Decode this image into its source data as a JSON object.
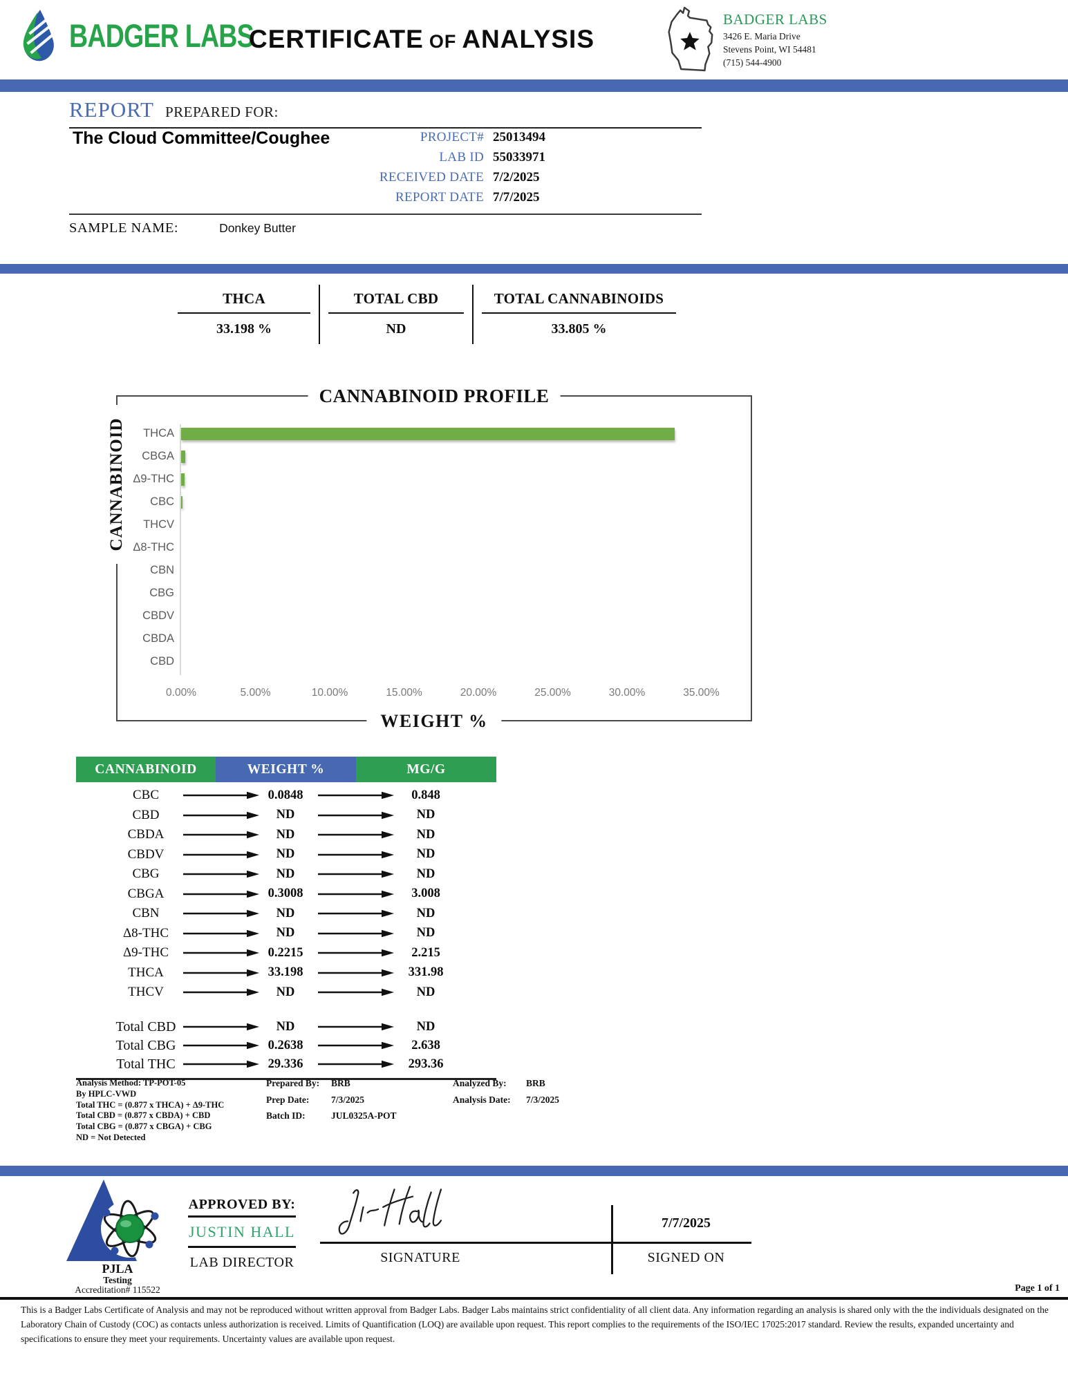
{
  "header": {
    "brand": "BADGER LABS",
    "title": {
      "word1": "CERTIFICATE",
      "word2": "OF",
      "word3": "ANALYSIS"
    },
    "lab": {
      "name": "BADGER LABS",
      "address1": "3426 E. Maria Drive",
      "address2": "Stevens Point, WI 54481",
      "phone": "(715) 544-4900"
    }
  },
  "report": {
    "title": "REPORT",
    "subtitle": "PREPARED FOR:",
    "client": "The Cloud Committee/Coughee",
    "fields": [
      {
        "label": "PROJECT#",
        "value": "25013494"
      },
      {
        "label": "LAB ID",
        "value": "55033971"
      },
      {
        "label": "RECEIVED DATE",
        "value": "7/2/2025"
      },
      {
        "label": "REPORT DATE",
        "value": "7/7/2025"
      }
    ],
    "sample_label": "SAMPLE NAME:",
    "sample_value": "Donkey Butter"
  },
  "summary": {
    "columns": [
      {
        "label": "THCA",
        "value": "33.198 %"
      },
      {
        "label": "TOTAL CBD",
        "value": "ND"
      },
      {
        "label": "TOTAL CANNABINOIDS",
        "value": "33.805 %"
      }
    ]
  },
  "chart_data": {
    "type": "bar",
    "orientation": "horizontal",
    "title": "CANNABINOID PROFILE",
    "xlabel": "WEIGHT %",
    "ylabel": "CANNABINOID",
    "categories": [
      "THCA",
      "CBGA",
      "Δ9-THC",
      "CBC",
      "THCV",
      "Δ8-THC",
      "CBN",
      "CBG",
      "CBDV",
      "CBDA",
      "CBD"
    ],
    "values": [
      33.198,
      0.3008,
      0.2215,
      0.0848,
      0,
      0,
      0,
      0,
      0,
      0,
      0
    ],
    "xlim": [
      0,
      35
    ],
    "x_ticks": [
      "0.00%",
      "5.00%",
      "10.00%",
      "15.00%",
      "20.00%",
      "25.00%",
      "30.00%",
      "35.00%"
    ],
    "bar_color": "#70ad47",
    "grid": false,
    "legend": "none"
  },
  "cannabinoid_table": {
    "headers": [
      "CANNABINOID",
      "WEIGHT %",
      "MG/G"
    ],
    "rows": [
      {
        "name": "CBC",
        "weight": "0.0848",
        "mgg": "0.848"
      },
      {
        "name": "CBD",
        "weight": "ND",
        "mgg": "ND"
      },
      {
        "name": "CBDA",
        "weight": "ND",
        "mgg": "ND"
      },
      {
        "name": "CBDV",
        "weight": "ND",
        "mgg": "ND"
      },
      {
        "name": "CBG",
        "weight": "ND",
        "mgg": "ND"
      },
      {
        "name": "CBGA",
        "weight": "0.3008",
        "mgg": "3.008"
      },
      {
        "name": "CBN",
        "weight": "ND",
        "mgg": "ND"
      },
      {
        "name": "Δ8-THC",
        "weight": "ND",
        "mgg": "ND"
      },
      {
        "name": "Δ9-THC",
        "weight": "0.2215",
        "mgg": "2.215"
      },
      {
        "name": "THCA",
        "weight": "33.198",
        "mgg": "331.98"
      },
      {
        "name": "THCV",
        "weight": "ND",
        "mgg": "ND"
      }
    ],
    "totals": [
      {
        "name": "Total CBD",
        "weight": "ND",
        "mgg": "ND"
      },
      {
        "name": "Total CBG",
        "weight": "0.2638",
        "mgg": "2.638"
      },
      {
        "name": "Total THC",
        "weight": "29.336",
        "mgg": "293.36"
      }
    ]
  },
  "method_notes": {
    "left": [
      "Analysis Method: TP-POT-05",
      "By HPLC-VWD",
      "Total THC = (0.877 x  THCA) + Δ9-THC",
      "Total CBD = (0.877 x  CBDA) + CBD",
      "Total CBG = (0.877 x  CBGA) + CBG",
      "ND = Not Detected"
    ],
    "middle": [
      {
        "label": "Prepared By:",
        "value": "BRB"
      },
      {
        "label": "Prep Date:",
        "value": "7/3/2025"
      },
      {
        "label": "Batch ID:",
        "value": "JUL0325A-POT"
      }
    ],
    "right": [
      {
        "label": "Analyzed By:",
        "value": "BRB"
      },
      {
        "label": "Analysis Date:",
        "value": "7/3/2025"
      }
    ]
  },
  "approval": {
    "accreditation_org": "PJLA",
    "accreditation_line2": "Testing",
    "accreditation_line3": "Accreditation# 115522",
    "approved_by_label": "APPROVED BY:",
    "approver": "JUSTIN HALL",
    "approver_title": "LAB DIRECTOR",
    "signature_label": "SIGNATURE",
    "signed_on_date": "7/7/2025",
    "signed_on_label": "SIGNED ON"
  },
  "footer": {
    "page": "Page 1 of 1",
    "disclaimer": "This is a Badger Labs Certificate of Analysis and may not be reproduced without written approval from Badger Labs. Badger Labs maintains strict confidentiality of all client data. Any information regarding an analysis is shared only with the the individuals designated on the Laboratory Chain of Custody (COC) as contacts unless authorization is received. Limits of Quantification (LOQ) are available upon request. This report complies to the requirements of the ISO/IEC 17025:2017 standard. Review the results, expanded uncertainty and specifications to ensure they meet your requirements. Uncertainty values are available upon request."
  },
  "colors": {
    "accent_blue": "#4769b1",
    "accent_green": "#2e9e52",
    "bar_green": "#70ad47",
    "brand_green": "#27a34a",
    "approver_green": "#2fa36b"
  }
}
